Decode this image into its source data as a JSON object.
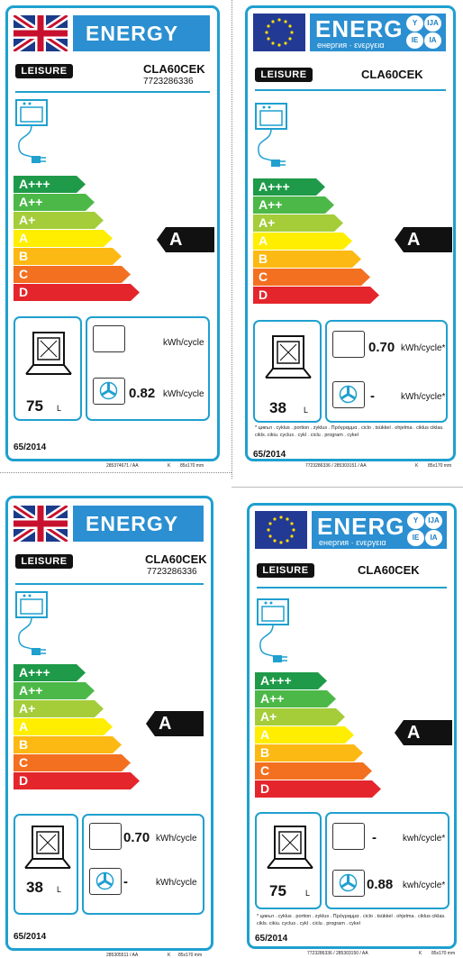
{
  "labels": [
    {
      "variant": "uk",
      "header": "ENERGY",
      "brand": "LEISURE",
      "model": "CLA60CEK",
      "code": "7723286336",
      "classes": [
        "A+++",
        "A++",
        "A+",
        "A",
        "B",
        "C",
        "D"
      ],
      "rating": "A",
      "volume": "75",
      "volume_unit": "L",
      "conv_value": "",
      "conv_unit": "kWh/cycle",
      "fan_value": "0.82",
      "fan_unit": "kWh/cycle",
      "regulation": "65/2014",
      "print_code": "285374671 /  AA",
      "print_k": "K",
      "print_size": "85x170 mm",
      "note": ""
    },
    {
      "variant": "eu",
      "header": "ENERG",
      "header_sub": "енергия · ενεργεια",
      "badges": [
        "Y",
        "IJA",
        "IE",
        "IA"
      ],
      "brand": "LEISURE",
      "model": "CLA60CEK",
      "code": "",
      "classes": [
        "A+++",
        "A++",
        "A+",
        "A",
        "B",
        "C",
        "D"
      ],
      "rating": "A",
      "volume": "38",
      "volume_unit": "L",
      "conv_value": "0.70",
      "conv_unit": "kWh/cycle*",
      "fan_value": "-",
      "fan_unit": "kWh/cycle*",
      "regulation": "65/2014",
      "print_code": "7723286336  /   285303151 /  AA",
      "print_k": "K",
      "print_size": "85x170 mm",
      "note": "* цикъл . cyklus . portion . zyklus . Πρόγραμμα . ciclo . tsükkel . ohjelma . ciklus ciklas. cikls. cikiu. cyclus . cykl . ciclu . program . cykel"
    },
    {
      "variant": "uk",
      "header": "ENERGY",
      "brand": "LEISURE",
      "model": "CLA60CEK",
      "code": "7723286336",
      "classes": [
        "A+++",
        "A++",
        "A+",
        "A",
        "B",
        "C",
        "D"
      ],
      "rating": "A",
      "volume": "38",
      "volume_unit": "L",
      "conv_value": "0.70",
      "conv_unit": "kWh/cycle",
      "fan_value": "-",
      "fan_unit": "kWh/cycle",
      "regulation": "65/2014",
      "print_code": "285305511 /  AA",
      "print_k": "K",
      "print_size": "85x170 mm",
      "note": ""
    },
    {
      "variant": "eu",
      "header": "ENERG",
      "header_sub": "енергия · ενεργεια",
      "badges": [
        "Y",
        "IJA",
        "IE",
        "IA"
      ],
      "brand": "LEISURE",
      "model": "CLA60CEK",
      "code": "",
      "classes": [
        "A+++",
        "A++",
        "A+",
        "A",
        "B",
        "C",
        "D"
      ],
      "rating": "A",
      "volume": "75",
      "volume_unit": "L",
      "conv_value": "-",
      "conv_unit": "kwh/cycle*",
      "fan_value": "0.88",
      "fan_unit": "kwh/cycle*",
      "regulation": "65/2014",
      "print_code": "7723286336  /   285303150 /  AA",
      "print_k": "K",
      "print_size": "85x170 mm",
      "note": "* цикъл . cyklus . portion . zyklus . Πρόγραμμα . ciclo . tsükkel . ohjelma . ciklus ciklas. cikls. cikiu. cyclus . cykl . ciclu . program . cykel"
    }
  ],
  "colors": {
    "frame": "#1fa0cf",
    "banner": "#2b8fd1",
    "eu_blue": "#233a95",
    "eu_star": "#ffdd00",
    "class_colors": [
      "#1e9a48",
      "#4cb848",
      "#a4cd39",
      "#ffee00",
      "#fdb913",
      "#f37021",
      "#e4252c"
    ],
    "rating": "#111111"
  },
  "icons": [
    "uk-flag-icon",
    "eu-flag-icon",
    "oven-icon",
    "plug-icon",
    "conventional-oven-icon",
    "fan-oven-icon",
    "oven-volume-icon"
  ]
}
